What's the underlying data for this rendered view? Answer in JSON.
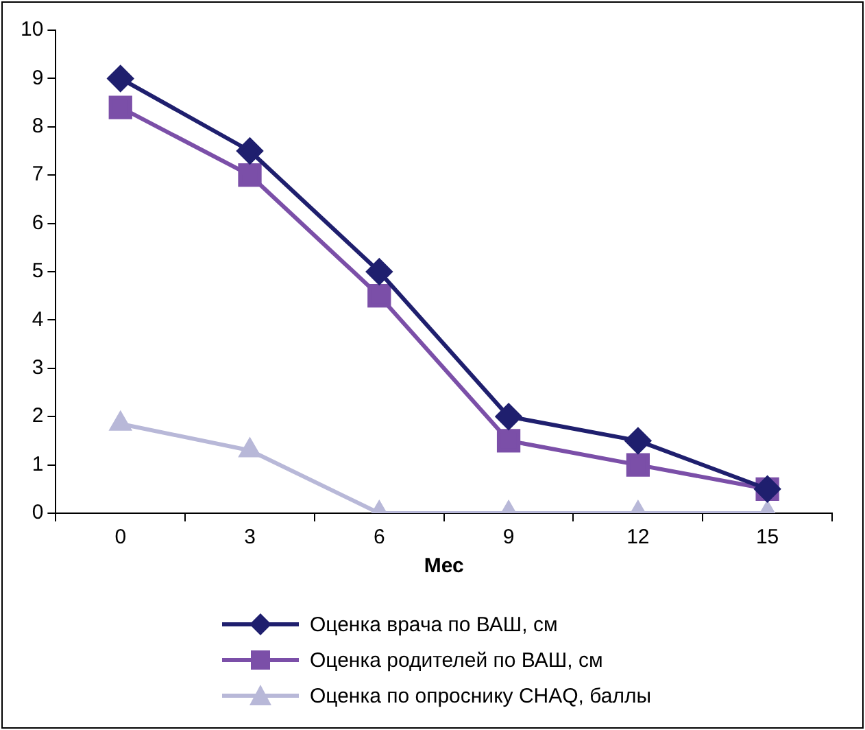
{
  "chart_data": {
    "type": "line",
    "xlabel": "Мес",
    "categories": [
      "0",
      "3",
      "6",
      "9",
      "12",
      "15"
    ],
    "ylim": [
      0,
      10
    ],
    "yticks": [
      0,
      1,
      2,
      3,
      4,
      5,
      6,
      7,
      8,
      9,
      10
    ],
    "grid": false,
    "legend": "bottom",
    "line_style": "solid",
    "series": [
      {
        "name": "Оценка врача по ВАШ, см",
        "color": "#1f1f6e",
        "marker": "diamond",
        "values": [
          9,
          7.5,
          5,
          2,
          1.5,
          0.5
        ]
      },
      {
        "name": "Оценка родителей по ВАШ, см",
        "color": "#7b4fa8",
        "marker": "square",
        "values": [
          8.4,
          7,
          4.5,
          1.5,
          1,
          0.5
        ]
      },
      {
        "name": "Оценка по опроснику CHAQ, баллы",
        "color": "#b8b8d8",
        "marker": "triangle",
        "values": [
          1.85,
          1.3,
          0,
          0,
          0,
          0
        ]
      }
    ]
  }
}
